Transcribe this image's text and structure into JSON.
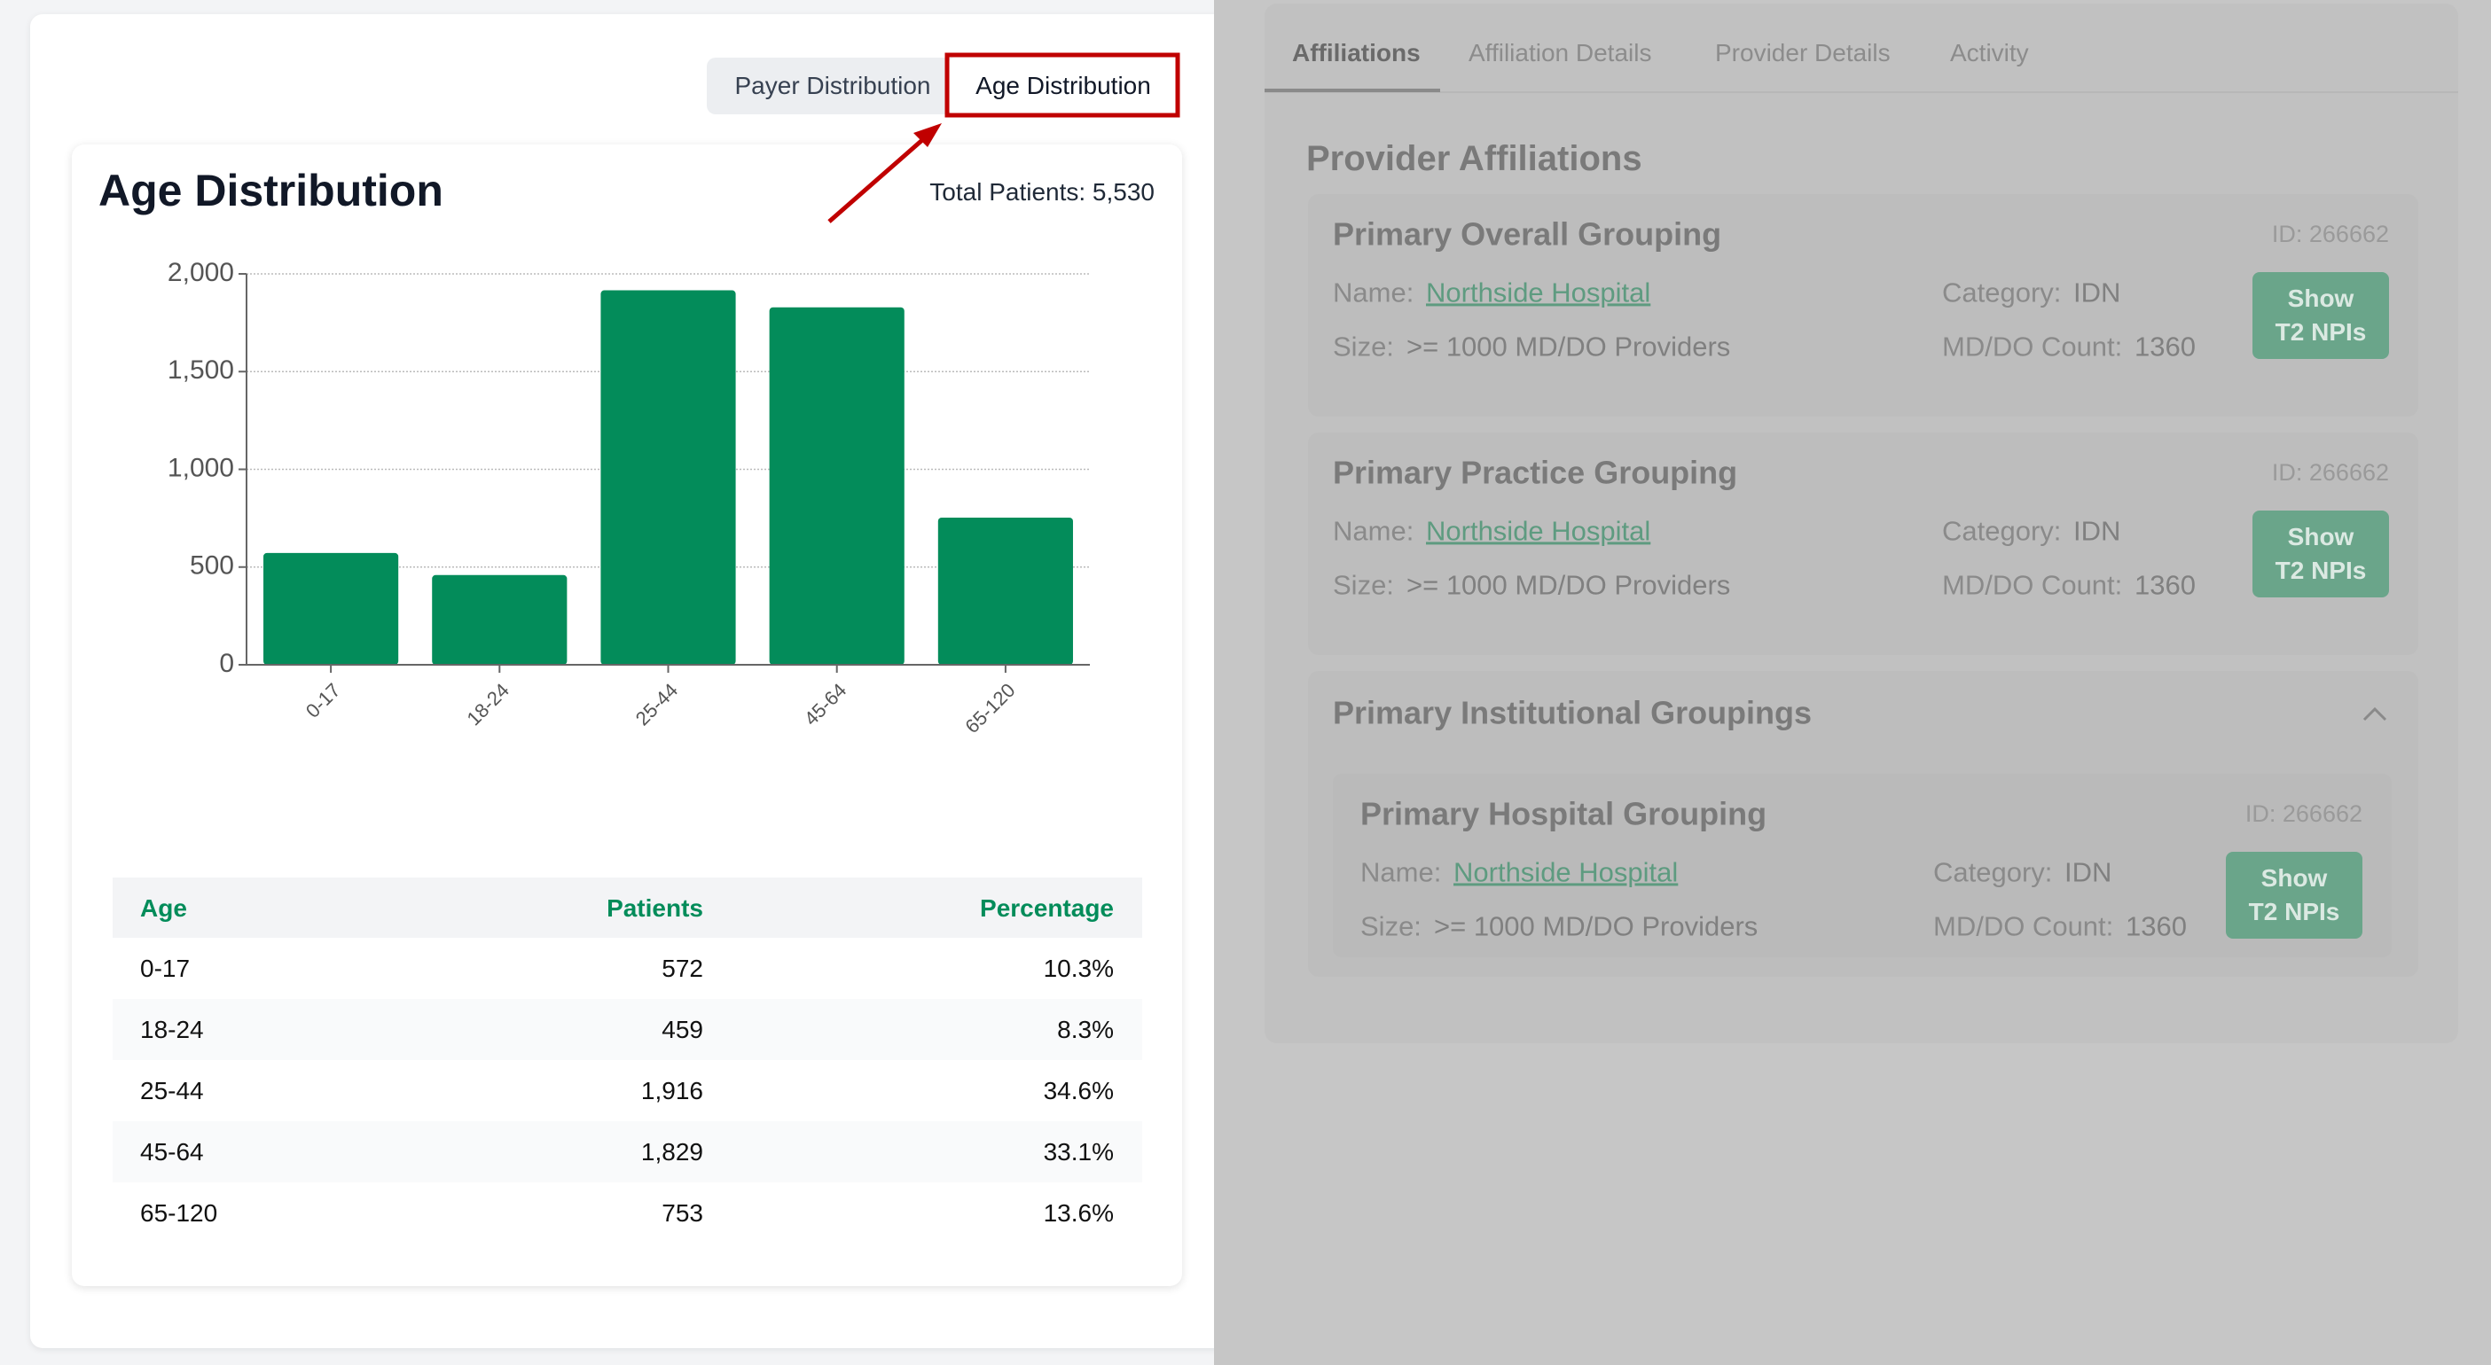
{
  "toggle": {
    "buttons": [
      "Payer Distribution",
      "Age Distribution"
    ]
  },
  "card": {
    "title": "Age Distribution",
    "total": "Total Patients: 5,530"
  },
  "chart_data": {
    "type": "bar",
    "categories": [
      "0-17",
      "18-24",
      "25-44",
      "45-64",
      "65-120"
    ],
    "values": [
      572,
      459,
      1916,
      1829,
      753
    ],
    "color": "#038c5a",
    "ylim": [
      0,
      2000
    ],
    "yticks": [
      0,
      500,
      {
        "value": 1000,
        "label": "1,000"
      },
      {
        "value": 1500,
        "label": "1,500"
      },
      {
        "value": 2000,
        "label": "2,000"
      }
    ],
    "grid": true
  },
  "table": {
    "header": [
      "Age",
      "Patients",
      "Percentage"
    ],
    "rows": [
      [
        "0-17",
        "572",
        "10.3%"
      ],
      [
        "18-24",
        "459",
        "8.3%"
      ],
      [
        "25-44",
        "1,916",
        "34.6%"
      ],
      [
        "45-64",
        "1,829",
        "33.1%"
      ],
      [
        "65-120",
        "753",
        "13.6%"
      ]
    ]
  },
  "affiliations": {
    "tabs": [
      "Affiliations",
      "Affiliation Details",
      "Provider Details",
      "Activity"
    ],
    "heading": "Provider Affiliations",
    "groups": [
      {
        "title": "Primary Overall Grouping",
        "id": "ID: 266662",
        "name_label": "Name:",
        "name": "Northside Hospital",
        "category_label": "Category:",
        "category": "IDN",
        "size_label": "Size:",
        "size": ">= 1000 MD/DO Providers",
        "count_label": "MD/DO Count:",
        "count": "1360",
        "button": [
          "Show",
          "T2 NPIs"
        ]
      },
      {
        "title": "Primary Practice Grouping",
        "id": "ID: 266662",
        "name_label": "Name:",
        "name": "Northside Hospital",
        "category_label": "Category:",
        "category": "IDN",
        "size_label": "Size:",
        "size": ">= 1000 MD/DO Providers",
        "count_label": "MD/DO Count:",
        "count": "1360",
        "button": [
          "Show",
          "T2 NPIs"
        ]
      }
    ],
    "institutional": {
      "title": "Primary Institutional Groupings",
      "groups": [
        {
          "title": "Primary Hospital Grouping",
          "id": "ID: 266662",
          "name_label": "Name:",
          "name": "Northside Hospital",
          "category_label": "Category:",
          "category": "IDN",
          "size_label": "Size:",
          "size": ">= 1000 MD/DO Providers",
          "count_label": "MD/DO Count:",
          "count": "1360",
          "button": [
            "Show",
            "T2 NPIs"
          ]
        }
      ]
    }
  }
}
